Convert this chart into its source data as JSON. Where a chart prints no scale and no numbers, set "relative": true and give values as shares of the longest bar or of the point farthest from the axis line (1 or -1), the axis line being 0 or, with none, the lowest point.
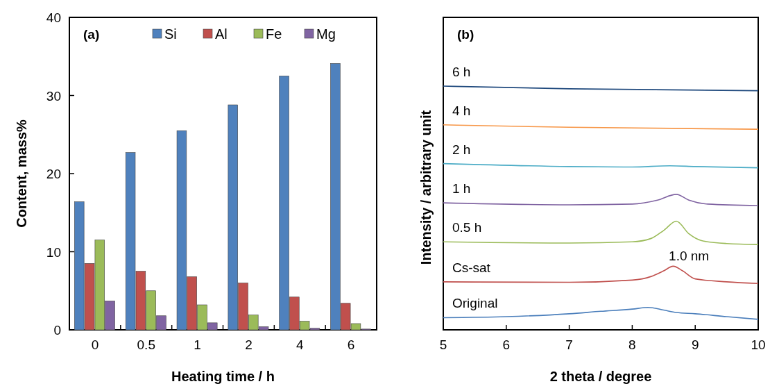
{
  "chart_data": [
    {
      "type": "bar",
      "categories": [
        "0",
        "0.5",
        "1",
        "2",
        "4",
        "6"
      ],
      "xlabel": "Heating time / h",
      "ylabel": "Content, mass%",
      "ylim": [
        0,
        40
      ],
      "yticks": [
        0,
        10,
        20,
        30,
        40
      ],
      "legend": "top",
      "annotations": [
        "(a)"
      ],
      "series": [
        {
          "name": "Si",
          "color": "#4f81bd",
          "values": [
            16.4,
            22.7,
            25.5,
            28.8,
            32.5,
            34.1
          ]
        },
        {
          "name": "Al",
          "color": "#c0504d",
          "values": [
            8.5,
            7.5,
            6.8,
            6.0,
            4.2,
            3.4
          ]
        },
        {
          "name": "Fe",
          "color": "#9bbb59",
          "values": [
            11.5,
            5.0,
            3.2,
            1.9,
            1.1,
            0.8
          ]
        },
        {
          "name": "Mg",
          "color": "#8064a2",
          "values": [
            3.7,
            1.8,
            0.9,
            0.4,
            0.2,
            0.1
          ]
        }
      ]
    },
    {
      "type": "line",
      "relative": true,
      "xlabel": "2 theta / degree",
      "ylabel": "Intensity / arbitrary unit",
      "xlim": [
        5,
        10
      ],
      "xticks": [
        5,
        6,
        7,
        8,
        9,
        10
      ],
      "annotations": [
        "(b)",
        "1.0 nm"
      ],
      "series": [
        {
          "name": "6 h",
          "color": "#1f497d",
          "x": [
            5,
            7,
            10
          ],
          "values": [
            1,
            0.989,
            0.981
          ]
        },
        {
          "name": "4 h",
          "color": "#f79646",
          "x": [
            5,
            7,
            10
          ],
          "values": [
            0.841,
            0.831,
            0.823
          ]
        },
        {
          "name": "2 h",
          "color": "#4bacc6",
          "x": [
            5,
            7,
            8,
            8.6,
            9,
            10
          ],
          "values": [
            0.682,
            0.67,
            0.668,
            0.673,
            0.67,
            0.665
          ]
        },
        {
          "name": "1 h",
          "color": "#8064a2",
          "x": [
            5,
            7,
            8,
            8.4,
            8.7,
            8.9,
            9.2,
            10
          ],
          "values": [
            0.521,
            0.513,
            0.516,
            0.532,
            0.556,
            0.532,
            0.516,
            0.51
          ]
        },
        {
          "name": "0.5 h",
          "color": "#9bbb59",
          "x": [
            5,
            7,
            8,
            8.3,
            8.5,
            8.7,
            8.9,
            9.1,
            9.5,
            10
          ],
          "values": [
            0.361,
            0.356,
            0.361,
            0.375,
            0.408,
            0.446,
            0.394,
            0.366,
            0.354,
            0.35
          ]
        },
        {
          "name": "Cs-sat",
          "color": "#c0504d",
          "x": [
            5,
            7,
            8,
            8.3,
            8.5,
            8.65,
            8.8,
            9,
            9.5,
            10
          ],
          "values": [
            0.197,
            0.195,
            0.204,
            0.219,
            0.242,
            0.261,
            0.242,
            0.209,
            0.197,
            0.19
          ]
        },
        {
          "name": "Original",
          "color": "#4a7ebb",
          "x": [
            5,
            6,
            7,
            7.5,
            8,
            8.25,
            8.5,
            8.7,
            9,
            9.5,
            10
          ],
          "values": [
            0.05,
            0.054,
            0.066,
            0.076,
            0.085,
            0.092,
            0.081,
            0.071,
            0.066,
            0.054,
            0.043
          ]
        }
      ]
    }
  ]
}
